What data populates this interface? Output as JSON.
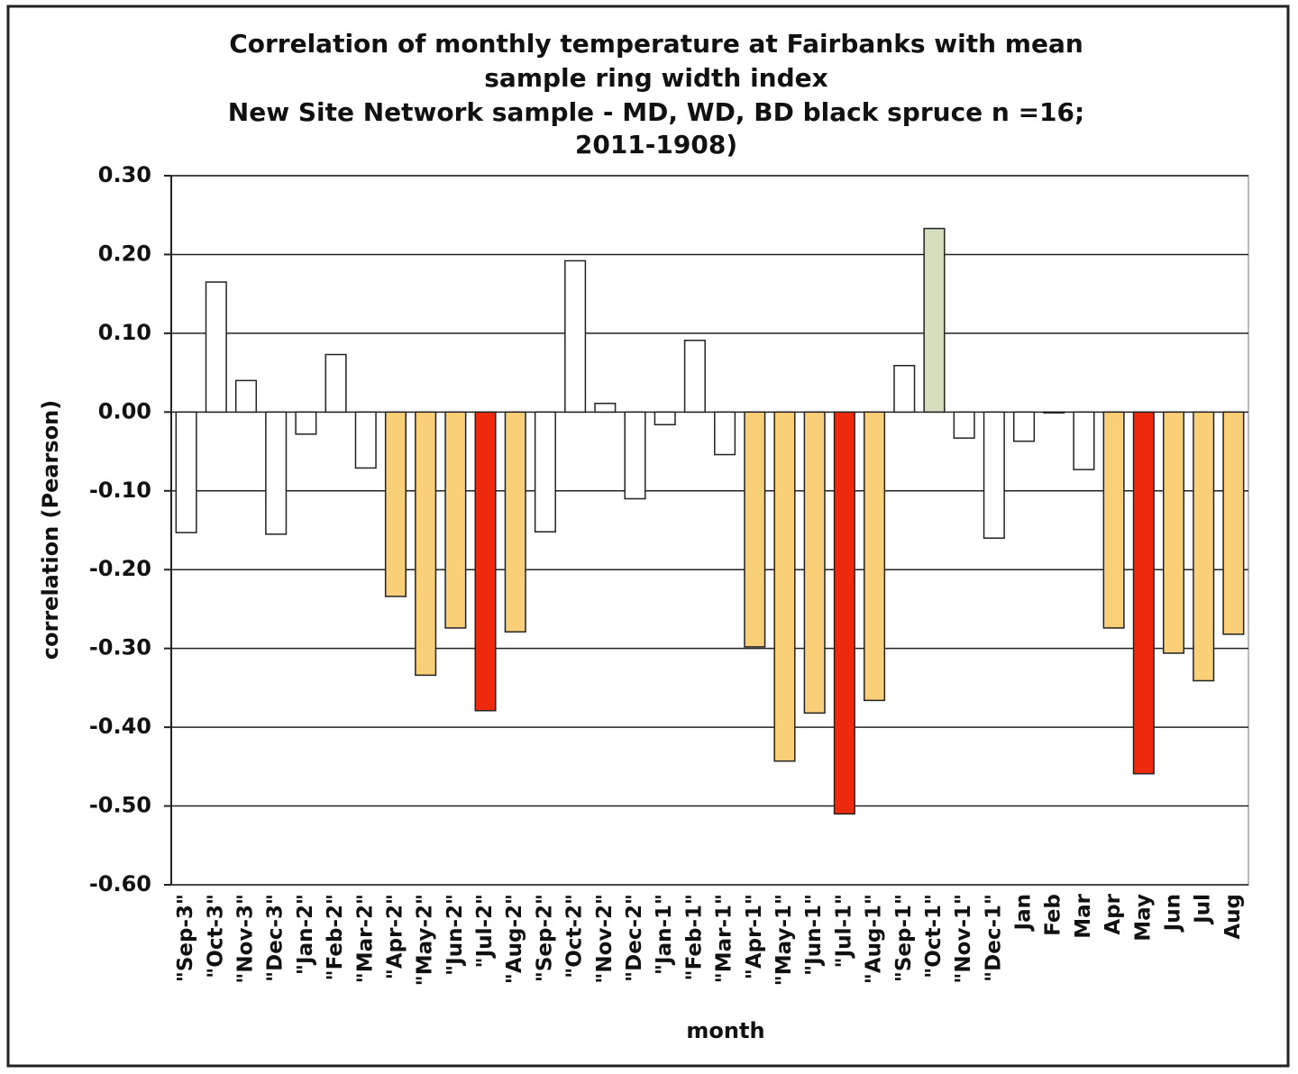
{
  "chart_data": {
    "type": "bar",
    "title": [
      "Correlation of monthly temperature at Fairbanks with mean",
      "sample ring width index"
    ],
    "subtitle": [
      "New Site Network sample - MD, WD, BD black spruce n =16;",
      "2011-1908)"
    ],
    "x_label": "month",
    "y_label": "correlation (Pearson)",
    "categories": [
      "\"Sep-3\"",
      "\"Oct-3\"",
      "\"Nov-3\"",
      "\"Dec-3\"",
      "\"Jan-2\"",
      "\"Feb-2\"",
      "\"Mar-2\"",
      "\"Apr-2\"",
      "\"May-2\"",
      "\"Jun-2\"",
      "\"Jul-2\"",
      "\"Aug-2\"",
      "\"Sep-2\"",
      "\"Oct-2\"",
      "\"Nov-2\"",
      "\"Dec-2\"",
      "\"Jan-1\"",
      "\"Feb-1\"",
      "\"Mar-1\"",
      "\"Apr-1\"",
      "\"May-1\"",
      "\"Jun-1\"",
      "\"Jul-1\"",
      "\"Aug-1\"",
      "\"Sep-1\"",
      "\"Oct-1\"",
      "\"Nov-1\"",
      "\"Dec-1\"",
      "Jan",
      "Feb",
      "Mar",
      "Apr",
      "May",
      "Jun",
      "Jul",
      "Aug"
    ],
    "values": [
      -0.153,
      0.165,
      0.04,
      -0.155,
      -0.028,
      0.073,
      -0.071,
      -0.234,
      -0.334,
      -0.274,
      -0.379,
      -0.279,
      -0.152,
      0.192,
      0.011,
      -0.11,
      -0.016,
      0.091,
      -0.054,
      -0.298,
      -0.443,
      -0.382,
      -0.51,
      -0.366,
      0.059,
      0.233,
      -0.033,
      -0.16,
      -0.037,
      -0.001,
      -0.073,
      -0.274,
      -0.459,
      -0.306,
      -0.341,
      -0.282
    ],
    "colors": [
      "#ffffff",
      "#ffffff",
      "#ffffff",
      "#ffffff",
      "#ffffff",
      "#ffffff",
      "#ffffff",
      "#f9cf78",
      "#f9cf78",
      "#f9cf78",
      "#ee2a0c",
      "#f9cf78",
      "#ffffff",
      "#ffffff",
      "#ffffff",
      "#ffffff",
      "#ffffff",
      "#ffffff",
      "#ffffff",
      "#f9cf78",
      "#f9cf78",
      "#f9cf78",
      "#ee2a0c",
      "#f9cf78",
      "#ffffff",
      "#d5dfbd",
      "#ffffff",
      "#ffffff",
      "#ffffff",
      "#ffffff",
      "#ffffff",
      "#f9cf78",
      "#ee2a0c",
      "#f9cf78",
      "#f9cf78",
      "#f9cf78"
    ],
    "ylim": [
      -0.6,
      0.3
    ],
    "yticks": [
      {
        "value": 0.3,
        "label": "0.30"
      },
      {
        "value": 0.2,
        "label": "0.20"
      },
      {
        "value": 0.1,
        "label": "0.10"
      },
      {
        "value": 0,
        "label": "0.00"
      },
      {
        "value": -0.1,
        "label": "-0.10"
      },
      {
        "value": -0.2,
        "label": "-0.20"
      },
      {
        "value": -0.3,
        "label": "-0.30"
      },
      {
        "value": -0.4,
        "label": "-0.40"
      },
      {
        "value": -0.5,
        "label": "-0.50"
      },
      {
        "value": -0.6,
        "label": "-0.60"
      }
    ],
    "grid": true
  }
}
